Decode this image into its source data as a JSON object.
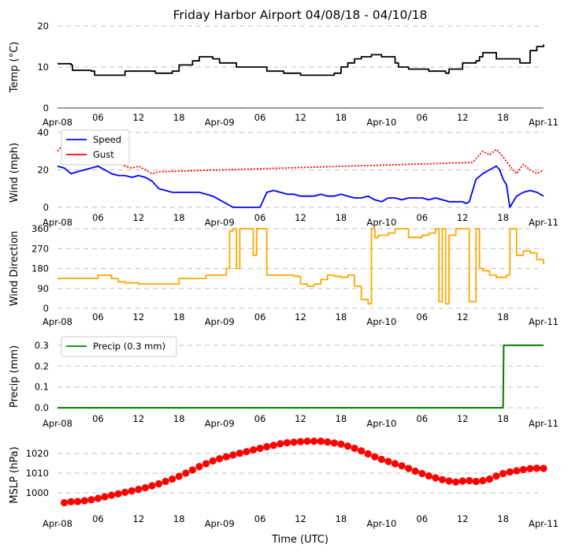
{
  "title": "Friday Harbor Airport 04/08/18 - 04/10/18",
  "xlabel": "Time (UTC)",
  "x_tick_labels": [
    "Apr-08",
    "06",
    "12",
    "18",
    "Apr-09",
    "06",
    "12",
    "18",
    "Apr-10",
    "06",
    "12",
    "18",
    "Apr-11"
  ],
  "colors": {
    "temp": "#000000",
    "speed": "#0000ff",
    "gust": "#ff0000",
    "direction": "#ffa500",
    "precip": "#008000",
    "mslp": "#ff0000",
    "grid": "#c0c0c0"
  },
  "chart_data": [
    {
      "type": "line",
      "name": "temperature",
      "ylabel": "Temp (°C)",
      "ylim": [
        0,
        20
      ],
      "yticks": [
        0,
        10,
        20
      ],
      "xlim_hours": [
        0,
        72
      ],
      "series": [
        {
          "name": "Temp",
          "x_hours": [
            0,
            2,
            2.2,
            5,
            5.5,
            9,
            10,
            14,
            14.5,
            17,
            18,
            20,
            21,
            23,
            24,
            26,
            26.5,
            30,
            31,
            33,
            33.5,
            36,
            40,
            41,
            42,
            43,
            44,
            45,
            46.5,
            48,
            50,
            50.5,
            52,
            55,
            56,
            57.5,
            58,
            60,
            62,
            62.5,
            63,
            65,
            66,
            67,
            68.5,
            70,
            71,
            72
          ],
          "values": [
            10.8,
            10.5,
            9.2,
            9,
            8,
            8,
            9,
            9,
            8.5,
            9,
            10.5,
            11.5,
            12.5,
            12,
            11,
            11,
            10,
            10,
            9,
            9,
            8.5,
            8,
            8,
            8.5,
            10,
            11,
            12,
            12.5,
            13,
            12.5,
            11,
            10,
            9.5,
            9,
            9,
            8.5,
            9.5,
            11,
            11.5,
            12.5,
            13.5,
            12,
            12,
            12,
            11,
            14,
            15,
            15.5
          ]
        }
      ]
    },
    {
      "type": "line",
      "name": "wind",
      "ylabel": "Wind (mph)",
      "ylim": [
        -3,
        40
      ],
      "yticks": [
        0,
        20,
        40
      ],
      "legend": [
        "Speed",
        "Gust"
      ],
      "series": [
        {
          "name": "Speed",
          "x_hours": [
            0,
            1,
            2,
            3,
            4,
            5,
            6,
            7,
            8,
            9,
            10,
            11,
            12,
            13,
            14,
            15,
            16,
            17,
            18,
            19,
            20,
            21,
            22,
            23,
            24,
            25,
            26,
            26.5,
            27,
            28,
            29,
            30,
            31,
            32,
            33,
            34,
            35,
            36,
            37,
            38,
            39,
            40,
            41,
            42,
            43,
            44,
            45,
            46,
            47,
            48,
            49,
            50,
            51,
            52,
            53,
            54,
            55,
            56,
            57,
            58,
            59,
            60,
            60.5,
            61,
            62,
            63,
            64,
            65,
            65.5,
            66,
            66.5,
            67,
            68,
            69,
            70,
            71,
            72
          ],
          "values": [
            22,
            21,
            18,
            19,
            20,
            21,
            22,
            20,
            18,
            17,
            17,
            16,
            17,
            16,
            14,
            10,
            9,
            8,
            8,
            8,
            8,
            8,
            7,
            6,
            4,
            2,
            0,
            0,
            0,
            0,
            0,
            0,
            8,
            9,
            8,
            7,
            7,
            6,
            6,
            6,
            7,
            6,
            6,
            7,
            6,
            5,
            5,
            6,
            4,
            3,
            5,
            5,
            4,
            5,
            5,
            5,
            4,
            5,
            4,
            3,
            3,
            3,
            2,
            3,
            15,
            18,
            20,
            22,
            20,
            15,
            12,
            0,
            6,
            8,
            9,
            8,
            6
          ]
        },
        {
          "name": "Gust",
          "x_hours": [
            0,
            1,
            2,
            3,
            4,
            5,
            6,
            7,
            8,
            9,
            10,
            11,
            12,
            13,
            14,
            15,
            61.5,
            62,
            63,
            64,
            65,
            66,
            67,
            68,
            69,
            70,
            71,
            72
          ],
          "values": [
            30,
            34,
            29,
            26,
            31,
            33,
            30,
            28,
            26,
            24,
            22,
            21,
            22,
            20,
            18,
            19,
            24,
            26,
            30,
            28,
            31,
            27,
            22,
            18,
            23,
            20,
            18,
            20
          ]
        }
      ]
    },
    {
      "type": "line",
      "name": "wind_direction",
      "ylabel": "Wind Direction",
      "ylim": [
        0,
        360
      ],
      "yticks": [
        0,
        90,
        180,
        270,
        360
      ],
      "series": [
        {
          "name": "Direction",
          "x_hours": [
            0,
            3,
            6,
            8,
            9,
            10,
            12,
            14,
            16,
            17,
            18,
            21,
            22,
            24,
            25,
            25.5,
            26,
            26.5,
            27,
            28,
            29,
            29.5,
            30,
            31,
            33,
            35,
            36,
            37,
            38,
            39,
            40,
            41,
            42,
            43,
            44,
            45,
            46,
            46.5,
            47,
            47.5,
            48,
            49,
            50,
            52,
            54,
            55,
            56,
            56.5,
            57,
            57.5,
            58,
            59,
            60,
            61,
            62,
            62.5,
            63,
            64,
            65,
            66,
            66.5,
            67,
            68,
            69,
            70,
            71,
            72
          ],
          "values": [
            135,
            135,
            150,
            135,
            120,
            115,
            110,
            110,
            110,
            110,
            135,
            135,
            150,
            150,
            180,
            350,
            360,
            180,
            360,
            360,
            240,
            360,
            360,
            150,
            150,
            145,
            110,
            100,
            110,
            130,
            150,
            145,
            140,
            150,
            100,
            40,
            20,
            360,
            320,
            330,
            330,
            340,
            360,
            320,
            330,
            340,
            360,
            30,
            360,
            20,
            330,
            360,
            360,
            30,
            360,
            180,
            170,
            150,
            140,
            140,
            150,
            360,
            240,
            260,
            250,
            220,
            200
          ]
        }
      ]
    },
    {
      "type": "line",
      "name": "precip",
      "ylabel": "Precip (mm)",
      "ylim": [
        -0.03,
        0.33
      ],
      "yticks": [
        0.0,
        0.1,
        0.2,
        0.3
      ],
      "ytick_labels": [
        "0.0",
        "0.1",
        "0.2",
        "0.3"
      ],
      "legend": [
        "Precip (0.3 mm)"
      ],
      "series": [
        {
          "name": "Precip (0.3 mm)",
          "x_hours": [
            0,
            66,
            66.1,
            72
          ],
          "values": [
            0,
            0,
            0.3,
            0.3
          ]
        }
      ]
    },
    {
      "type": "scatter",
      "name": "mslp",
      "ylabel": "MSLP (hPa)",
      "ylim": [
        990,
        1028
      ],
      "yticks": [
        1000,
        1010,
        1020
      ],
      "series": [
        {
          "name": "MSLP",
          "x_hours": [
            1,
            2,
            3,
            4,
            5,
            6,
            7,
            8,
            9,
            10,
            11,
            12,
            13,
            14,
            15,
            16,
            17,
            18,
            19,
            20,
            21,
            22,
            23,
            24,
            25,
            26,
            27,
            28,
            29,
            30,
            31,
            32,
            33,
            34,
            35,
            36,
            37,
            38,
            39,
            40,
            41,
            42,
            43,
            44,
            45,
            46,
            47,
            48,
            49,
            50,
            51,
            52,
            53,
            54,
            55,
            56,
            57,
            58,
            59,
            60,
            61,
            62,
            63,
            64,
            65,
            66,
            67,
            68,
            69,
            70,
            71,
            72
          ],
          "values": [
            995,
            995.5,
            995.6,
            996,
            996.5,
            997.2,
            998,
            998.8,
            999.5,
            1000.3,
            1001,
            1001.8,
            1002.6,
            1003.6,
            1004.6,
            1005.8,
            1007,
            1008.4,
            1010,
            1011.6,
            1013.3,
            1014.8,
            1016.2,
            1017.3,
            1018.3,
            1019.2,
            1020.1,
            1020.9,
            1021.8,
            1022.6,
            1023.4,
            1024.1,
            1024.9,
            1025.4,
            1025.7,
            1026,
            1026.2,
            1026.2,
            1026.2,
            1025.8,
            1025.3,
            1024.7,
            1023.7,
            1022.6,
            1021.3,
            1019.8,
            1018.3,
            1017,
            1015.9,
            1014.8,
            1013.7,
            1012.4,
            1011,
            1009.8,
            1008.6,
            1007.6,
            1006.7,
            1006,
            1005.5,
            1006,
            1006.2,
            1005.8,
            1006.2,
            1007,
            1008.5,
            1009.8,
            1010.6,
            1011.2,
            1011.8,
            1012.3,
            1012.5,
            1012.4
          ]
        }
      ]
    }
  ]
}
